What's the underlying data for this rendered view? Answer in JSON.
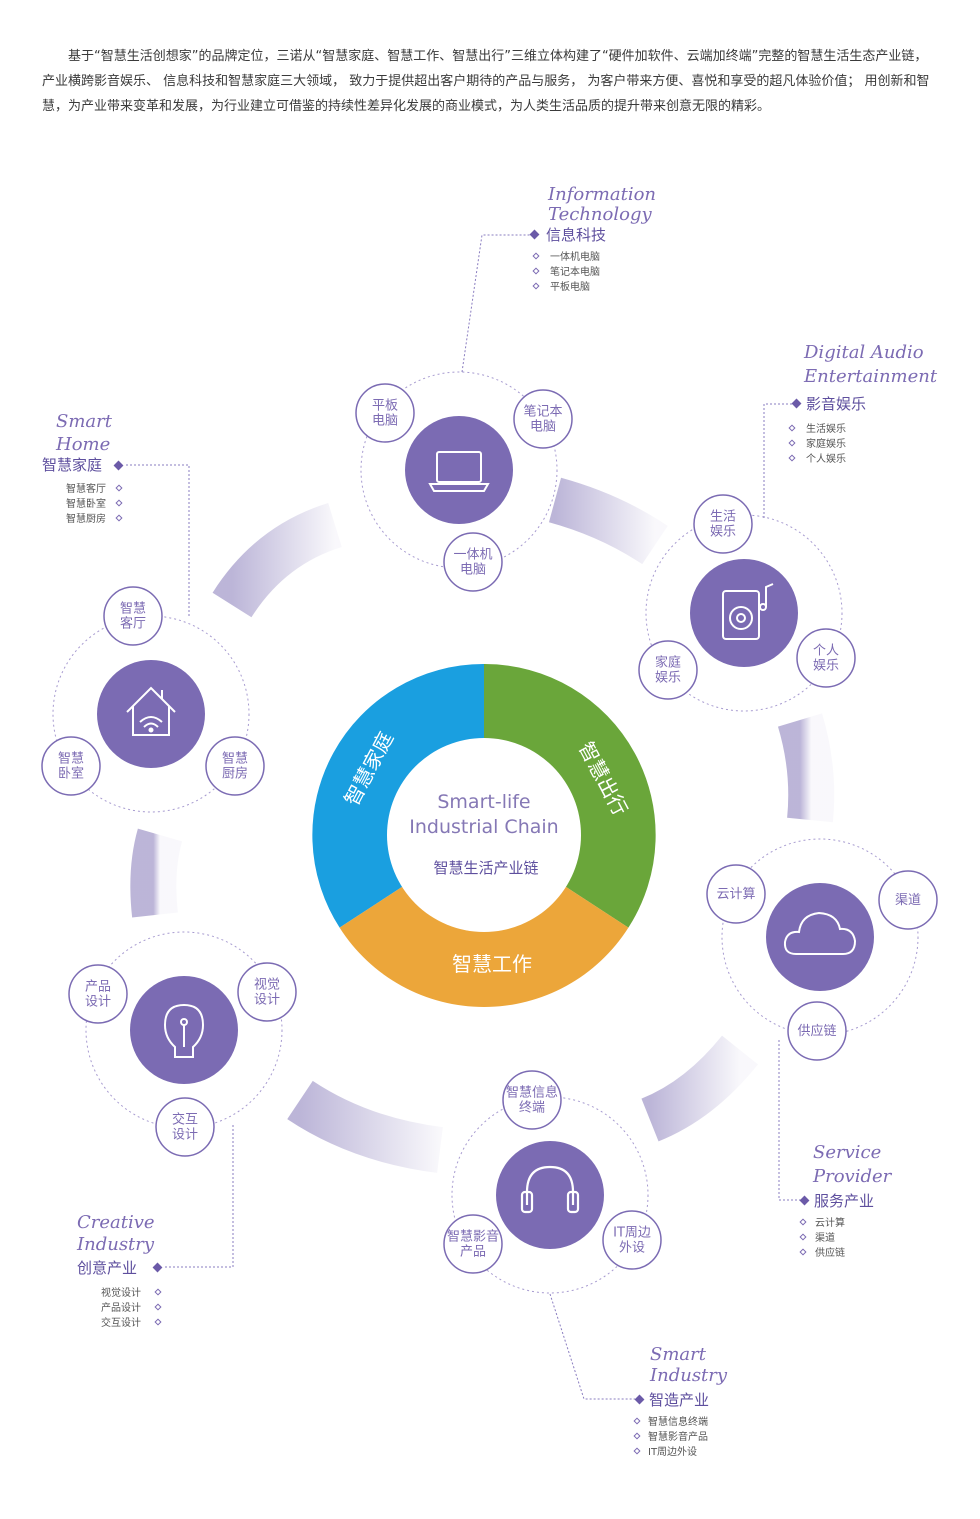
{
  "intro_text": "基于“智慧生活创想家”的品牌定位，三诺从“智慧家庭、智慧工作、智慧出行”三维立体构建了“硬件加软件、云端加终端”完整的智慧生活生态产业链， 产业横跨影音娱乐、 信息科技和智慧家庭三大领域， 致力于提供超出客户期待的产品与服务， 为客户带来方便、喜悦和享受的超凡体验价值； 用创新和智慧，为产业带来变革和发展，为行业建立可借鉴的持续性差异化发展的商业模式，为人类生活品质的提升带来创意无限的精彩。",
  "center": {
    "title_line1": "Smart-life",
    "title_line2": "Industrial Chain",
    "subtitle": "智慧生活产业链",
    "seg_home": "智慧家庭",
    "seg_travel": "智慧出行",
    "seg_work": "智慧工作"
  },
  "colors": {
    "purple": "#7b6bb3",
    "blue": "#1a9fe0",
    "green": "#6aa63a",
    "orange": "#eca63a",
    "text_purple": "#7c6bb3"
  },
  "hubs": {
    "info": {
      "icon": "laptop-icon",
      "nodes": [
        "平板\n电脑",
        "笔记本\n电脑",
        "一体机\n电脑"
      ]
    },
    "audio": {
      "icon": "speaker-music-icon",
      "nodes": [
        "生活\n娱乐",
        "家庭\n娱乐",
        "个人\n娱乐"
      ]
    },
    "service": {
      "icon": "cloud-icon",
      "nodes": [
        "云计算",
        "渠道",
        "供应链"
      ]
    },
    "industry": {
      "icon": "headphones-icon",
      "nodes": [
        "智慧信息\n终端",
        "智慧影音\n产品",
        "IT周边\n外设"
      ]
    },
    "creative": {
      "icon": "lightbulb-icon",
      "nodes": [
        "产品\n设计",
        "视觉\n设计",
        "交互\n设计"
      ]
    },
    "home": {
      "icon": "smart-home-icon",
      "nodes": [
        "智慧\n客厅",
        "智慧\n卧室",
        "智慧\n厨房"
      ]
    }
  },
  "callouts": {
    "info": {
      "en1": "Information",
      "en2": "Technology",
      "zh": "信息科技",
      "items": [
        "一体机电脑",
        "笔记本电脑",
        "平板电脑"
      ]
    },
    "audio": {
      "en1": "Digital Audio",
      "en2": "Entertainment",
      "zh": "影音娱乐",
      "items": [
        "生活娱乐",
        "家庭娱乐",
        "个人娱乐"
      ]
    },
    "service": {
      "en1": "Service",
      "en2": "Provider",
      "zh": "服务产业",
      "items": [
        "云计算",
        "渠道",
        "供应链"
      ]
    },
    "industry": {
      "en1": "Smart",
      "en2": "Industry",
      "zh": "智造产业",
      "items": [
        "智慧信息终端",
        "智慧影音产品",
        "IT周边外设"
      ]
    },
    "creative": {
      "en1": "Creative",
      "en2": "Industry",
      "zh": "创意产业",
      "items": [
        "视觉设计",
        "产品设计",
        "交互设计"
      ]
    },
    "home": {
      "en1": "Smart",
      "en2": "Home",
      "zh": "智慧家庭",
      "items": [
        "智慧客厅",
        "智慧卧室",
        "智慧厨房"
      ]
    }
  }
}
